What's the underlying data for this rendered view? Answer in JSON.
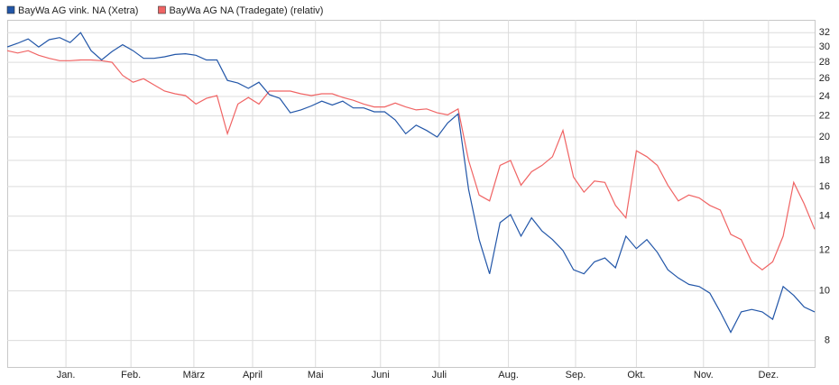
{
  "chart_data": {
    "type": "line",
    "log_y": true,
    "grid": true,
    "legend": "top-left",
    "x": [
      0,
      5,
      10,
      15,
      20,
      25,
      30,
      35,
      40,
      45,
      50,
      55,
      60,
      65,
      70,
      75,
      80,
      85,
      90,
      95,
      100,
      105,
      110,
      115,
      120,
      125,
      130,
      135,
      140,
      145,
      150,
      155,
      160,
      165,
      170,
      175,
      180,
      185,
      190,
      195,
      200,
      205,
      210,
      215,
      220,
      225,
      230,
      235,
      240,
      245,
      250,
      255,
      260,
      265,
      270,
      275,
      280,
      285,
      290,
      295,
      300,
      305,
      310,
      315,
      320,
      325,
      330,
      335,
      340,
      345,
      350,
      355,
      360,
      365,
      370,
      375,
      380,
      385
    ],
    "xlim": [
      0,
      385
    ],
    "xticks": [
      {
        "value": 28,
        "label": "Jan."
      },
      {
        "value": 59,
        "label": "Feb."
      },
      {
        "value": 89,
        "label": "März"
      },
      {
        "value": 117,
        "label": "April"
      },
      {
        "value": 147,
        "label": "Mai"
      },
      {
        "value": 178,
        "label": "Juni"
      },
      {
        "value": 206,
        "label": "Juli"
      },
      {
        "value": 239,
        "label": "Aug."
      },
      {
        "value": 271,
        "label": "Sep."
      },
      {
        "value": 300,
        "label": "Okt."
      },
      {
        "value": 332,
        "label": "Nov."
      },
      {
        "value": 363,
        "label": "Dez."
      }
    ],
    "ylim": [
      7.1,
      33.9
    ],
    "yticks": [
      8,
      10,
      12,
      14,
      16,
      18,
      20,
      22,
      24,
      26,
      28,
      30,
      32
    ],
    "series": [
      {
        "name": "BayWa AG vink. NA (Xetra)",
        "color": "#2256a8",
        "values": [
          30.0,
          30.5,
          31.1,
          30.0,
          31.0,
          31.3,
          30.6,
          32.0,
          29.5,
          28.3,
          29.4,
          30.3,
          29.5,
          28.5,
          28.5,
          28.7,
          29.0,
          29.1,
          28.9,
          28.3,
          28.3,
          25.8,
          25.5,
          24.9,
          25.6,
          24.2,
          23.8,
          22.3,
          22.6,
          23.0,
          23.5,
          23.1,
          23.5,
          22.8,
          22.8,
          22.4,
          22.4,
          21.6,
          20.3,
          21.1,
          20.6,
          20.0,
          21.3,
          22.2,
          15.8,
          12.6,
          10.8,
          13.6,
          14.1,
          12.8,
          13.9,
          13.1,
          12.6,
          12.0,
          11.0,
          10.8,
          11.4,
          11.6,
          11.1,
          12.8,
          12.1,
          12.6,
          11.9,
          11.0,
          10.6,
          10.3,
          10.2,
          9.9,
          9.1,
          8.3,
          9.1,
          9.2,
          9.1,
          8.8,
          10.2,
          9.8,
          9.3,
          9.1
        ]
      },
      {
        "name": "BayWa AG NA (Tradegate) (relativ)",
        "color": "#f06464",
        "values": [
          29.5,
          29.2,
          29.5,
          28.9,
          28.5,
          28.2,
          28.2,
          28.3,
          28.3,
          28.2,
          28.0,
          26.4,
          25.6,
          26.0,
          25.3,
          24.6,
          24.3,
          24.1,
          23.2,
          23.8,
          24.1,
          20.3,
          23.2,
          23.9,
          23.2,
          24.6,
          24.6,
          24.6,
          24.3,
          24.1,
          24.3,
          24.3,
          23.9,
          23.6,
          23.2,
          22.9,
          22.9,
          23.3,
          22.9,
          22.6,
          22.7,
          22.3,
          22.1,
          22.7,
          18.0,
          15.4,
          15.0,
          17.6,
          18.0,
          16.1,
          17.1,
          17.6,
          18.3,
          20.6,
          16.7,
          15.6,
          16.4,
          16.3,
          14.7,
          13.9,
          18.8,
          18.3,
          17.6,
          16.1,
          15.0,
          15.4,
          15.2,
          14.7,
          14.4,
          12.9,
          12.6,
          11.4,
          11.0,
          11.4,
          12.8,
          16.3,
          14.8,
          13.2
        ]
      }
    ]
  }
}
